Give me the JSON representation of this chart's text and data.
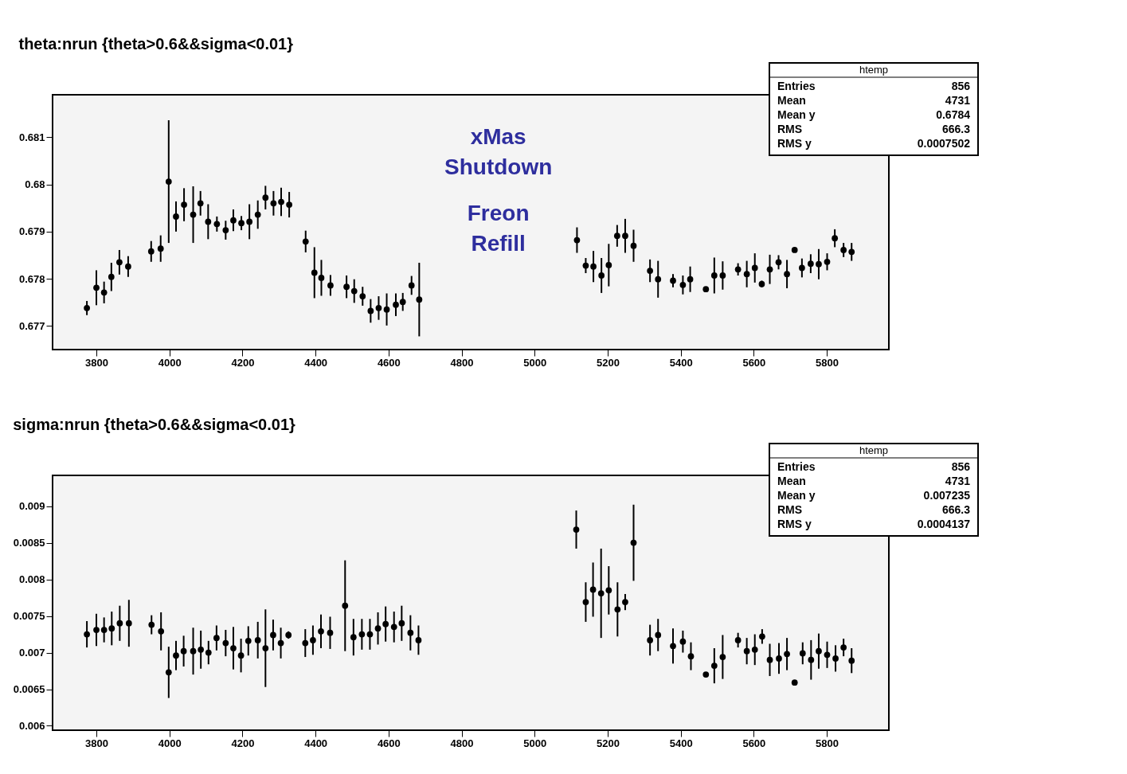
{
  "chart_data": [
    {
      "type": "scatter",
      "title": "theta:nrun {theta>0.6&&sigma<0.01}",
      "color": "#000000",
      "marker": "circle",
      "grid": false,
      "xlim": [
        3680,
        5970
      ],
      "xticks": [
        3800,
        4000,
        4200,
        4400,
        4600,
        4800,
        5000,
        5200,
        5400,
        5600,
        5800
      ],
      "ylim": [
        0.6765,
        0.6819
      ],
      "yticks": [
        0.677,
        0.678,
        0.679,
        0.68,
        0.681
      ],
      "x": [
        3774,
        3800,
        3821,
        3841,
        3863,
        3887,
        3950,
        3976,
        3998,
        4018,
        4040,
        4065,
        4085,
        4106,
        4130,
        4154,
        4175,
        4197,
        4219,
        4242,
        4263,
        4285,
        4306,
        4328,
        4373,
        4397,
        4416,
        4441,
        4485,
        4506,
        4529,
        4551,
        4573,
        4595,
        4620,
        4639,
        4663,
        4684,
        5116,
        5140,
        5161,
        5183,
        5203,
        5226,
        5248,
        5271,
        5316,
        5338,
        5379,
        5406,
        5426,
        5469,
        5492,
        5515,
        5557,
        5581,
        5603,
        5622,
        5644,
        5668,
        5691,
        5712,
        5732,
        5756,
        5778,
        5801,
        5822,
        5846,
        5868
      ],
      "values": [
        0.67738,
        0.67781,
        0.67771,
        0.67804,
        0.67835,
        0.67826,
        0.67858,
        0.67864,
        0.68006,
        0.67932,
        0.67957,
        0.67936,
        0.6796,
        0.67921,
        0.67916,
        0.67903,
        0.67924,
        0.67918,
        0.67921,
        0.67936,
        0.67972,
        0.6796,
        0.67963,
        0.67957,
        0.67879,
        0.67813,
        0.67802,
        0.67786,
        0.67783,
        0.67774,
        0.67763,
        0.67732,
        0.67738,
        0.67735,
        0.67745,
        0.67751,
        0.67786,
        0.67756,
        0.67882,
        0.67828,
        0.67826,
        0.67807,
        0.67829,
        0.67891,
        0.67891,
        0.6787,
        0.67817,
        0.67799,
        0.67796,
        0.67787,
        0.67799,
        0.67778,
        0.67807,
        0.67807,
        0.6782,
        0.6781,
        0.67823,
        0.67789,
        0.6782,
        0.67835,
        0.6781,
        0.67861,
        0.67823,
        0.67832,
        0.67831,
        0.67836,
        0.67886,
        0.67861,
        0.67857
      ],
      "errors": [
        0.00015,
        0.00037,
        0.00023,
        0.0003,
        0.00026,
        0.00022,
        0.00022,
        0.00028,
        0.0013,
        0.00032,
        0.00035,
        0.0006,
        0.00026,
        0.00037,
        0.00016,
        0.0002,
        0.00023,
        0.00015,
        0.00037,
        0.0003,
        0.00025,
        0.00026,
        0.0003,
        0.00027,
        0.00023,
        0.00054,
        0.00038,
        0.00022,
        0.00024,
        0.00025,
        0.0002,
        0.00025,
        0.00025,
        0.00034,
        0.00024,
        0.00019,
        0.0002,
        0.00078,
        0.00027,
        0.00016,
        0.00033,
        0.00037,
        0.00045,
        0.00023,
        0.00036,
        0.00034,
        0.00024,
        0.00039,
        0.00014,
        0.0002,
        0.00027,
        3e-05,
        0.00038,
        0.0003,
        0.00013,
        0.00028,
        0.00031,
        7e-05,
        0.00031,
        0.00015,
        0.0003,
        3e-05,
        0.0002,
        0.0002,
        0.00032,
        0.00018,
        0.00019,
        0.00015,
        0.00019
      ],
      "annotations": [
        "xMas Shutdown",
        "Freon Refill",
        "htemp",
        "Entries",
        "856",
        "Mean",
        "4731",
        "Mean y",
        "0.6784",
        "RMS",
        "666.3",
        "RMS y",
        "0.0007502"
      ]
    },
    {
      "type": "scatter",
      "title": "sigma:nrun {theta>0.6&&sigma<0.01}",
      "color": "#000000",
      "marker": "circle",
      "grid": false,
      "xlim": [
        3680,
        5970
      ],
      "xticks": [
        3800,
        4000,
        4200,
        4400,
        4600,
        4800,
        5000,
        5200,
        5400,
        5600,
        5800
      ],
      "ylim": [
        0.00594,
        0.00942
      ],
      "yticks": [
        0.006,
        0.0065,
        0.007,
        0.0075,
        0.008,
        0.0085,
        0.009
      ],
      "x": [
        3774,
        3800,
        3821,
        3842,
        3864,
        3889,
        3951,
        3977,
        3998,
        4018,
        4039,
        4065,
        4086,
        4107,
        4129,
        4154,
        4175,
        4196,
        4216,
        4242,
        4263,
        4284,
        4305,
        4326,
        4372,
        4393,
        4415,
        4440,
        4481,
        4504,
        4527,
        4549,
        4571,
        4592,
        4615,
        4636,
        4660,
        4682,
        5114,
        5140,
        5160,
        5182,
        5203,
        5227,
        5248,
        5271,
        5316,
        5338,
        5379,
        5406,
        5428,
        5469,
        5492,
        5515,
        5557,
        5581,
        5603,
        5623,
        5644,
        5669,
        5691,
        5712,
        5734,
        5757,
        5778,
        5801,
        5824,
        5846,
        5868
      ],
      "values": [
        0.00725,
        0.00731,
        0.00731,
        0.00733,
        0.0074,
        0.0074,
        0.00738,
        0.00729,
        0.00673,
        0.00696,
        0.00702,
        0.00702,
        0.00704,
        0.007,
        0.0072,
        0.00713,
        0.00706,
        0.00696,
        0.00716,
        0.00717,
        0.00706,
        0.00724,
        0.00713,
        0.00724,
        0.00713,
        0.00717,
        0.00729,
        0.00727,
        0.00764,
        0.00721,
        0.00725,
        0.00725,
        0.00733,
        0.00739,
        0.00735,
        0.0074,
        0.00727,
        0.00717,
        0.00868,
        0.00769,
        0.00786,
        0.00781,
        0.00785,
        0.00759,
        0.00769,
        0.0085,
        0.00717,
        0.00724,
        0.00709,
        0.00715,
        0.00695,
        0.0067,
        0.00682,
        0.00694,
        0.00717,
        0.00702,
        0.00704,
        0.00722,
        0.0069,
        0.00692,
        0.00698,
        0.00659,
        0.00699,
        0.0069,
        0.00702,
        0.00697,
        0.00692,
        0.00707,
        0.00689
      ],
      "errors": [
        0.00018,
        0.00022,
        0.00017,
        0.00023,
        0.00024,
        0.00032,
        0.00013,
        0.00026,
        0.00035,
        0.0002,
        0.00021,
        0.00032,
        0.00026,
        0.00016,
        0.00017,
        0.00018,
        0.00029,
        0.00023,
        0.0002,
        0.00025,
        0.00053,
        0.00021,
        0.00021,
        5e-05,
        0.00019,
        0.0002,
        0.00023,
        0.00022,
        0.00062,
        0.00025,
        0.00021,
        0.00021,
        0.00022,
        0.00024,
        0.00021,
        0.00024,
        0.00024,
        0.0002,
        0.00026,
        0.00027,
        0.00037,
        0.00061,
        0.00033,
        0.00037,
        0.00011,
        0.00052,
        0.00021,
        0.00022,
        0.00024,
        0.00015,
        0.00019,
        3e-05,
        0.00024,
        0.0003,
        0.0001,
        0.00018,
        0.00021,
        0.0001,
        0.00022,
        0.00021,
        0.00022,
        3e-05,
        0.00015,
        0.00027,
        0.00024,
        0.00018,
        0.00018,
        0.00012,
        0.00017
      ],
      "annotations": [
        "htemp",
        "Entries",
        "856",
        "Mean",
        "4731",
        "Mean y",
        "0.007235",
        "RMS",
        "666.3",
        "RMS y",
        "0.0004137"
      ]
    }
  ]
}
